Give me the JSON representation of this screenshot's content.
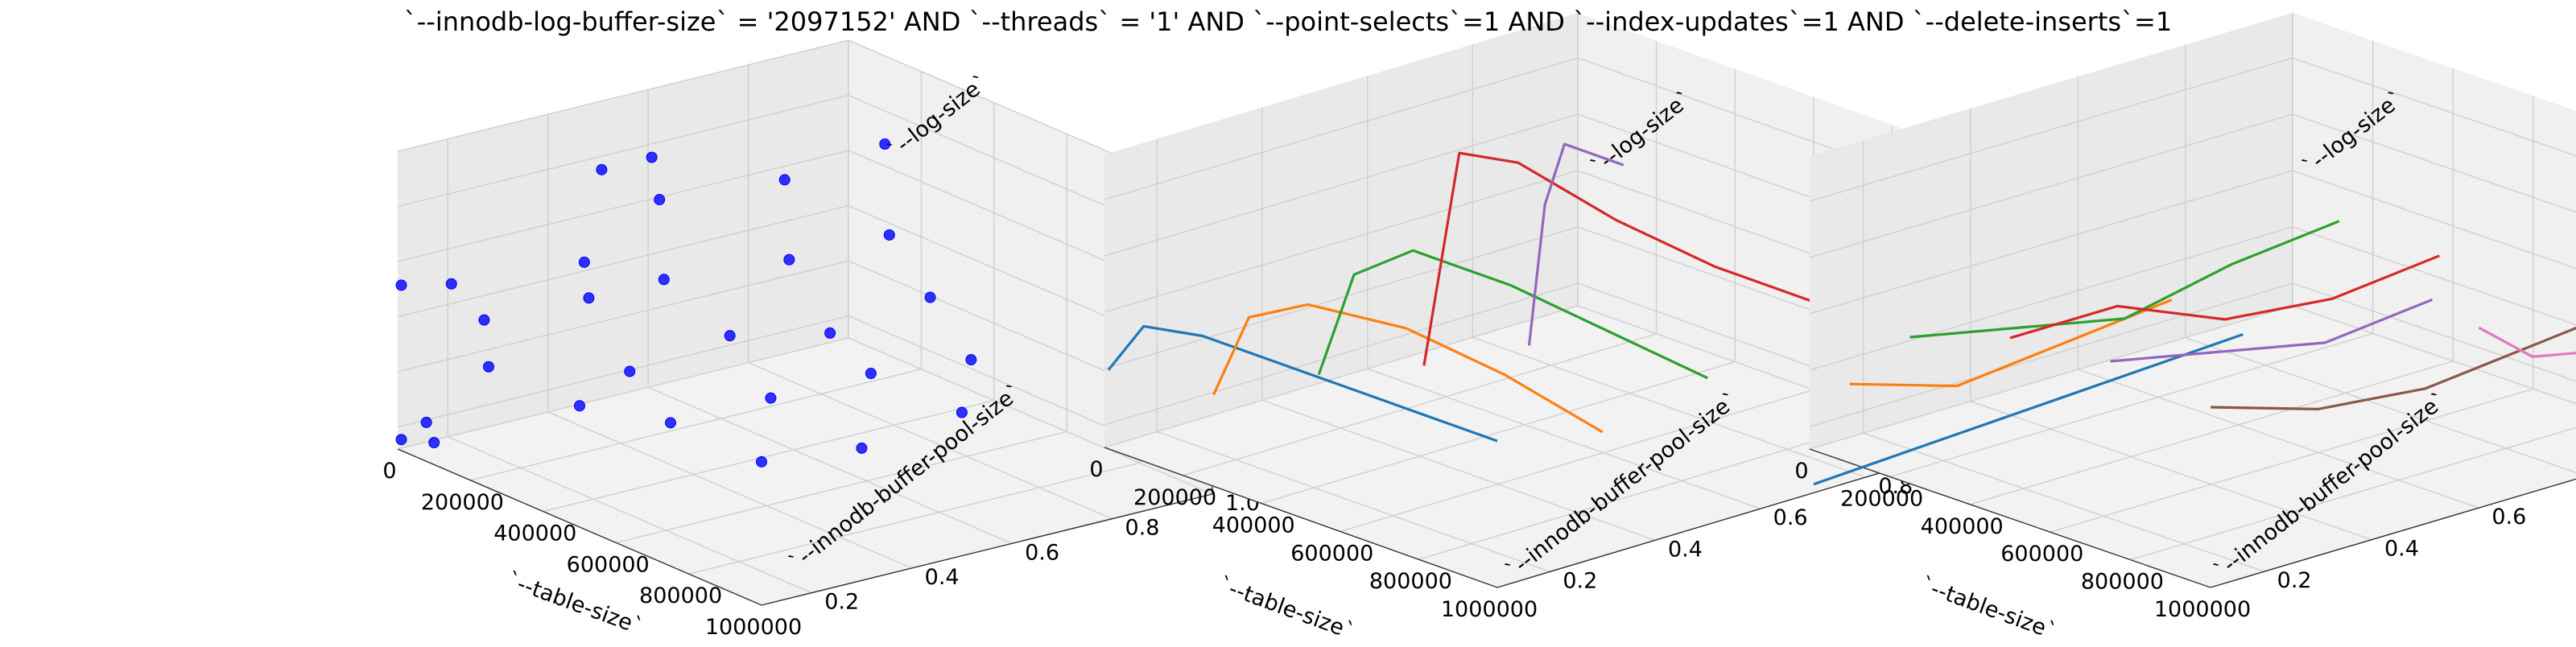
{
  "figure": {
    "title": "`--innodb-log-buffer-size` = '2097152' AND `--threads` = '1'  AND `--point-selects`=1 AND `--index-updates`=1 AND `--delete-inserts`=1"
  },
  "chart_data": [
    {
      "type": "scatter",
      "xlabel": "`--table-size`",
      "ylabel": "`--innodb-buffer-pool-size`",
      "zlabel": "`--log-size`",
      "xlim": [
        0,
        1000000
      ],
      "ylim": [
        0.1,
        1.0
      ],
      "zlim": [
        1.3,
        4.0
      ],
      "xticks": [
        "0",
        "200000",
        "400000",
        "600000",
        "800000",
        "1000000"
      ],
      "yticks": [
        "0.2",
        "0.4",
        "0.6",
        "0.8",
        "1.0"
      ],
      "zticks": [
        "1.5",
        "2.0",
        "2.5",
        "3.0",
        "3.5",
        "4.0"
      ],
      "marker_color": "#0000ff",
      "points": [
        {
          "x": 10000,
          "y": 0.1,
          "z": 1.4
        },
        {
          "x": 10000,
          "y": 0.15,
          "z": 1.5
        },
        {
          "x": 10000,
          "y": 0.1,
          "z": 2.8
        },
        {
          "x": 10000,
          "y": 0.2,
          "z": 2.7
        },
        {
          "x": 10000,
          "y": 0.5,
          "z": 3.4
        },
        {
          "x": 10000,
          "y": 0.6,
          "z": 3.4
        },
        {
          "x": 100000,
          "y": 0.1,
          "z": 1.5
        },
        {
          "x": 100000,
          "y": 0.2,
          "z": 2.5
        },
        {
          "x": 100000,
          "y": 0.4,
          "z": 2.8
        },
        {
          "x": 100000,
          "y": 0.55,
          "z": 3.2
        },
        {
          "x": 100000,
          "y": 0.8,
          "z": 3.1
        },
        {
          "x": 100000,
          "y": 1.0,
          "z": 3.2
        },
        {
          "x": 250000,
          "y": 0.1,
          "z": 2.4
        },
        {
          "x": 250000,
          "y": 0.3,
          "z": 2.8
        },
        {
          "x": 250000,
          "y": 0.45,
          "z": 2.8
        },
        {
          "x": 250000,
          "y": 0.7,
          "z": 2.7
        },
        {
          "x": 250000,
          "y": 0.9,
          "z": 2.7
        },
        {
          "x": 500000,
          "y": 0.1,
          "z": 2.4
        },
        {
          "x": 500000,
          "y": 0.2,
          "z": 2.6
        },
        {
          "x": 500000,
          "y": 0.4,
          "z": 2.7
        },
        {
          "x": 500000,
          "y": 0.6,
          "z": 2.5
        },
        {
          "x": 500000,
          "y": 0.8,
          "z": 2.6
        },
        {
          "x": 750000,
          "y": 0.1,
          "z": 2.6
        },
        {
          "x": 750000,
          "y": 0.3,
          "z": 2.6
        },
        {
          "x": 750000,
          "y": 0.5,
          "z": 2.6
        },
        {
          "x": 750000,
          "y": 0.7,
          "z": 2.5
        },
        {
          "x": 1000000,
          "y": 0.1,
          "z": 2.6
        },
        {
          "x": 1000000,
          "y": 0.3,
          "z": 2.5
        },
        {
          "x": 1000000,
          "y": 0.5,
          "z": 2.6
        },
        {
          "x": 1000000,
          "y": 0.8,
          "z": 2.6
        }
      ]
    },
    {
      "type": "line",
      "xlabel": "`--table-size`",
      "ylabel": "`--innodb-buffer-pool-size`",
      "zlabel": "`--log-size`",
      "xlim": [
        0,
        1000000
      ],
      "ylim": [
        0.1,
        1.0
      ],
      "zlim": [
        1.3,
        3.9
      ],
      "xticks": [
        "0",
        "200000",
        "400000",
        "600000",
        "800000",
        "1000000"
      ],
      "yticks": [
        "0.2",
        "0.4",
        "0.6",
        "0.8",
        "1.0"
      ],
      "zticks": [
        "1.5",
        "2.0",
        "2.5",
        "3.0",
        "3.5"
      ],
      "series": [
        {
          "color": "#1f77b4",
          "points": [
            {
              "x": 10000,
              "y": 0.1,
              "z": 2.0
            },
            {
              "x": 100000,
              "y": 0.1,
              "z": 2.5
            },
            {
              "x": 250000,
              "y": 0.1,
              "z": 2.6
            },
            {
              "x": 500000,
              "y": 0.1,
              "z": 2.6
            },
            {
              "x": 750000,
              "y": 0.1,
              "z": 2.6
            },
            {
              "x": 1000000,
              "y": 0.1,
              "z": 2.6
            }
          ]
        },
        {
          "color": "#ff7f0e",
          "points": [
            {
              "x": 10000,
              "y": 0.3,
              "z": 1.5
            },
            {
              "x": 100000,
              "y": 0.3,
              "z": 2.3
            },
            {
              "x": 250000,
              "y": 0.3,
              "z": 2.6
            },
            {
              "x": 500000,
              "y": 0.3,
              "z": 2.7
            },
            {
              "x": 750000,
              "y": 0.3,
              "z": 2.6
            },
            {
              "x": 1000000,
              "y": 0.3,
              "z": 2.4
            }
          ]
        },
        {
          "color": "#2ca02c",
          "points": [
            {
              "x": 10000,
              "y": 0.5,
              "z": 1.4
            },
            {
              "x": 100000,
              "y": 0.5,
              "z": 2.4
            },
            {
              "x": 250000,
              "y": 0.5,
              "z": 2.8
            },
            {
              "x": 500000,
              "y": 0.5,
              "z": 2.8
            },
            {
              "x": 750000,
              "y": 0.5,
              "z": 2.7
            },
            {
              "x": 1000000,
              "y": 0.5,
              "z": 2.6
            }
          ]
        },
        {
          "color": "#d62728",
          "points": [
            {
              "x": 10000,
              "y": 0.7,
              "z": 1.2
            },
            {
              "x": 100000,
              "y": 0.7,
              "z": 3.2
            },
            {
              "x": 250000,
              "y": 0.7,
              "z": 3.3
            },
            {
              "x": 500000,
              "y": 0.7,
              "z": 3.1
            },
            {
              "x": 750000,
              "y": 0.7,
              "z": 3.0
            },
            {
              "x": 1000000,
              "y": 0.7,
              "z": 3.0
            }
          ]
        },
        {
          "color": "#9467bd",
          "points": [
            {
              "x": 10000,
              "y": 0.9,
              "z": 1.1
            },
            {
              "x": 50000,
              "y": 0.9,
              "z": 2.4
            },
            {
              "x": 100000,
              "y": 0.9,
              "z": 3.0
            },
            {
              "x": 250000,
              "y": 0.9,
              "z": 3.0
            }
          ]
        }
      ]
    },
    {
      "type": "line",
      "xlabel": "`--table-size`",
      "ylabel": "`--innodb-buffer-pool-size`",
      "zlabel": "`--log-size`",
      "xlim": [
        0,
        1000000
      ],
      "ylim": [
        0.1,
        1.0
      ],
      "zlim": [
        1.3,
        3.9
      ],
      "xticks": [
        "0",
        "200000",
        "400000",
        "600000",
        "800000",
        "1000000"
      ],
      "yticks": [
        "0.2",
        "0.4",
        "0.6",
        "0.8",
        "1.0"
      ],
      "zticks": [
        "1.5",
        "2.0",
        "2.5",
        "3.0",
        "3.5"
      ],
      "series": [
        {
          "color": "#1f77b4",
          "points": [
            {
              "x": 10000,
              "y": 0.1,
              "z": 1.0
            },
            {
              "x": 10000,
              "y": 0.9,
              "z": 1.2
            }
          ]
        },
        {
          "color": "#ff7f0e",
          "points": [
            {
              "x": 100000,
              "y": 0.1,
              "z": 2.0
            },
            {
              "x": 100000,
              "y": 0.3,
              "z": 1.7
            },
            {
              "x": 100000,
              "y": 0.5,
              "z": 1.8
            },
            {
              "x": 100000,
              "y": 0.7,
              "z": 1.9
            }
          ]
        },
        {
          "color": "#2ca02c",
          "points": [
            {
              "x": 250000,
              "y": 0.1,
              "z": 2.6
            },
            {
              "x": 250000,
              "y": 0.3,
              "z": 2.4
            },
            {
              "x": 250000,
              "y": 0.5,
              "z": 2.2
            },
            {
              "x": 250000,
              "y": 0.7,
              "z": 2.4
            },
            {
              "x": 250000,
              "y": 0.9,
              "z": 2.5
            }
          ]
        },
        {
          "color": "#d62728",
          "points": [
            {
              "x": 500000,
              "y": 0.1,
              "z": 2.9
            },
            {
              "x": 500000,
              "y": 0.3,
              "z": 2.9
            },
            {
              "x": 500000,
              "y": 0.5,
              "z": 2.5
            },
            {
              "x": 500000,
              "y": 0.7,
              "z": 2.4
            },
            {
              "x": 500000,
              "y": 0.9,
              "z": 2.5
            }
          ]
        },
        {
          "color": "#9467bd",
          "points": [
            {
              "x": 750000,
              "y": 0.1,
              "z": 3.0
            },
            {
              "x": 750000,
              "y": 0.3,
              "z": 2.8
            },
            {
              "x": 750000,
              "y": 0.5,
              "z": 2.6
            },
            {
              "x": 750000,
              "y": 0.7,
              "z": 2.7
            }
          ]
        },
        {
          "color": "#8c564b",
          "points": [
            {
              "x": 1000000,
              "y": 0.1,
              "z": 2.9
            },
            {
              "x": 1000000,
              "y": 0.3,
              "z": 2.6
            },
            {
              "x": 1000000,
              "y": 0.5,
              "z": 2.5
            },
            {
              "x": 1000000,
              "y": 0.9,
              "z": 2.7
            }
          ]
        },
        {
          "color": "#e377c2",
          "points": [
            {
              "x": 1000000,
              "y": 0.6,
              "z": 2.9
            },
            {
              "x": 1000000,
              "y": 0.7,
              "z": 2.5
            },
            {
              "x": 1000000,
              "y": 0.8,
              "z": 2.4
            },
            {
              "x": 1000000,
              "y": 1.0,
              "z": 2.6
            }
          ]
        }
      ]
    }
  ]
}
